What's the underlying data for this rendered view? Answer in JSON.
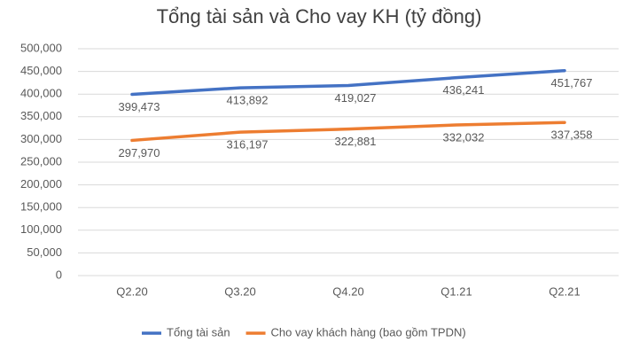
{
  "chart_data": {
    "type": "line",
    "title": "Tổng tài sản và Cho vay KH (tỷ đồng)",
    "categories": [
      "Q2.20",
      "Q3.20",
      "Q4.20",
      "Q1.21",
      "Q2.21"
    ],
    "series": [
      {
        "name": "Tổng tài sản",
        "color": "#4472c4",
        "values": [
          399473,
          413892,
          419027,
          436241,
          451767
        ],
        "value_labels": [
          "399,473",
          "413,892",
          "419,027",
          "436,241",
          "451,767"
        ]
      },
      {
        "name": "Cho vay khách hàng (bao gồm TPDN)",
        "color": "#ed7d31",
        "values": [
          297970,
          316197,
          322881,
          332032,
          337358
        ],
        "value_labels": [
          "297,970",
          "316,197",
          "322,881",
          "332,032",
          "337,358"
        ]
      }
    ],
    "ylim": [
      0,
      500000
    ],
    "yticks": [
      0,
      {
        "value": 50000,
        "label": "50,000"
      },
      {
        "value": 100000,
        "label": "100,000"
      },
      {
        "value": 150000,
        "label": "150,000"
      },
      {
        "value": 200000,
        "label": "200,000"
      },
      {
        "value": 250000,
        "label": "250,000"
      },
      {
        "value": 300000,
        "label": "300,000"
      },
      {
        "value": 350000,
        "label": "350,000"
      },
      {
        "value": 400000,
        "label": "400,000"
      },
      {
        "value": 450000,
        "label": "450,000"
      },
      {
        "value": 500000,
        "label": "500,000"
      }
    ],
    "grid": true,
    "legend": "bottom"
  }
}
